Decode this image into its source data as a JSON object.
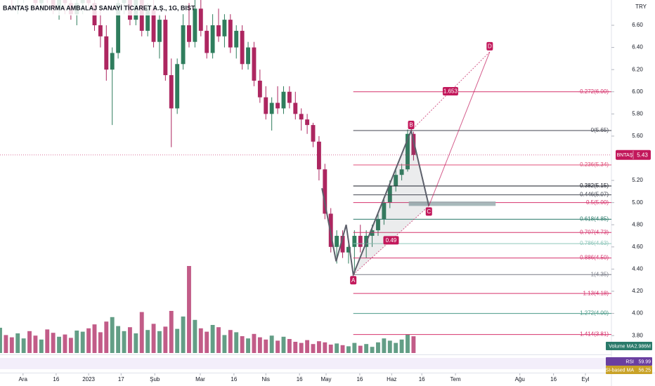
{
  "chart_data": {
    "type": "candlestick",
    "title": "BANTAŞ BANDIRMA AMBALAJ SANAYİ TİCARET A.Ş., 1G, BIST",
    "currency": "TRY",
    "colors": {
      "up": "#2f7d5d",
      "down": "#ad2660"
    },
    "open": [
      6.95,
      7.0,
      6.95,
      6.85,
      6.9,
      6.95,
      6.9,
      6.8,
      6.9,
      6.85,
      6.75,
      6.85,
      6.8,
      6.7,
      6.8,
      6.9,
      6.8,
      6.6,
      6.5,
      6.2,
      6.35,
      6.8,
      6.9,
      6.65,
      6.85,
      6.55,
      6.75,
      6.45,
      6.65,
      6.15,
      5.85,
      6.25,
      6.6,
      6.45,
      6.75,
      6.55,
      6.35,
      6.6,
      6.5,
      6.65,
      6.4,
      6.55,
      6.25,
      6.4,
      6.1,
      5.95,
      5.8,
      5.9,
      5.85,
      6.0,
      5.9,
      5.8,
      5.75,
      5.7,
      5.55,
      5.3,
      4.9,
      4.6,
      4.7,
      4.55,
      4.6,
      4.7,
      4.6,
      4.7,
      4.75,
      4.85,
      5.0,
      5.15,
      5.25,
      5.3,
      5.62
    ],
    "high": [
      7.05,
      7.1,
      7.0,
      6.95,
      7.0,
      7.05,
      7.0,
      6.95,
      7.0,
      6.95,
      6.9,
      6.95,
      6.9,
      6.85,
      6.95,
      7.0,
      6.9,
      6.75,
      6.6,
      6.4,
      6.9,
      7.0,
      7.0,
      6.9,
      6.95,
      6.8,
      6.85,
      6.7,
      6.7,
      6.3,
      6.3,
      6.7,
      6.8,
      6.85,
      6.9,
      6.6,
      6.7,
      6.75,
      6.7,
      6.7,
      6.6,
      6.6,
      6.45,
      6.45,
      6.2,
      6.05,
      5.95,
      6.05,
      6.05,
      6.05,
      6.0,
      5.85,
      5.8,
      5.72,
      5.6,
      5.35,
      4.95,
      4.75,
      4.75,
      4.65,
      4.75,
      4.8,
      4.75,
      4.8,
      4.9,
      5.05,
      5.2,
      5.3,
      5.35,
      5.66,
      5.64
    ],
    "low": [
      6.85,
      6.9,
      6.75,
      6.7,
      6.8,
      6.85,
      6.75,
      6.72,
      6.8,
      6.7,
      6.65,
      6.7,
      6.65,
      6.6,
      6.7,
      6.75,
      6.55,
      6.4,
      6.1,
      5.7,
      6.3,
      6.7,
      6.6,
      6.6,
      6.5,
      6.5,
      6.4,
      6.3,
      6.1,
      5.5,
      5.8,
      6.2,
      6.4,
      6.4,
      6.5,
      6.3,
      6.3,
      6.45,
      6.4,
      6.35,
      6.3,
      6.2,
      6.2,
      6.05,
      5.9,
      5.75,
      5.65,
      5.8,
      5.8,
      5.85,
      5.75,
      5.65,
      5.62,
      5.5,
      5.2,
      4.85,
      4.55,
      4.45,
      4.5,
      4.45,
      4.35,
      4.55,
      4.5,
      4.6,
      4.7,
      4.8,
      4.95,
      5.1,
      5.2,
      5.28,
      5.38
    ],
    "close": [
      7.0,
      6.95,
      6.85,
      6.9,
      6.95,
      6.9,
      6.8,
      6.9,
      6.85,
      6.75,
      6.85,
      6.8,
      6.7,
      6.8,
      6.9,
      6.8,
      6.6,
      6.5,
      6.2,
      6.35,
      6.8,
      6.9,
      6.65,
      6.85,
      6.55,
      6.75,
      6.45,
      6.65,
      6.15,
      5.85,
      6.25,
      6.6,
      6.45,
      6.75,
      6.55,
      6.35,
      6.6,
      6.5,
      6.65,
      6.4,
      6.55,
      6.25,
      6.4,
      6.1,
      5.95,
      5.8,
      5.9,
      5.85,
      6.0,
      5.9,
      5.8,
      5.75,
      5.7,
      5.55,
      5.3,
      4.9,
      4.6,
      4.7,
      4.55,
      4.6,
      4.7,
      4.6,
      4.7,
      4.75,
      4.85,
      5.0,
      5.15,
      5.25,
      5.3,
      5.62,
      5.43
    ],
    "volume": [
      4.5,
      3.2,
      2.8,
      3.5,
      2.6,
      3.9,
      3.1,
      2.4,
      4.2,
      3.6,
      2.9,
      3.3,
      2.7,
      4.0,
      3.8,
      4.4,
      5.1,
      3.7,
      5.6,
      6.4,
      4.8,
      3.9,
      4.6,
      3.5,
      7.3,
      4.1,
      5.2,
      3.9,
      4.7,
      7.5,
      4.3,
      6.5,
      15.5,
      5.9,
      4.4,
      3.8,
      5.0,
      4.6,
      3.2,
      4.1,
      3.7,
      3.0,
      2.6,
      3.4,
      2.8,
      2.4,
      3.1,
      2.2,
      2.9,
      2.5,
      2.0,
      1.8,
      2.3,
      1.6,
      2.1,
      1.9,
      1.5,
      1.7,
      1.4,
      1.2,
      1.8,
      1.3,
      1.6,
      1.1,
      1.9,
      2.6,
      2.2,
      1.8,
      2.4,
      3.3,
      2.986
    ],
    "xlim": [
      0,
      103.5
    ],
    "ylim": [
      3.63,
      6.828
    ],
    "yticks": [
      {
        "value": 6.6,
        "label": "6.60"
      },
      {
        "value": 6.4,
        "label": "6.40"
      },
      {
        "value": 6.2,
        "label": "6.20"
      },
      {
        "value": 6.0,
        "label": "6.00"
      },
      {
        "value": 5.8,
        "label": "5.80"
      },
      {
        "value": 5.6,
        "label": "5.60"
      },
      {
        "value": 5.2,
        "label": "5.20"
      },
      {
        "value": 5.0,
        "label": "5.00"
      },
      {
        "value": 4.8,
        "label": "4.80"
      },
      {
        "value": 4.6,
        "label": "4.60"
      },
      {
        "value": 4.4,
        "label": "4.40"
      },
      {
        "value": 4.2,
        "label": "4.20"
      },
      {
        "value": 4.0,
        "label": "4.00"
      },
      {
        "value": 3.8,
        "label": "3.80"
      }
    ],
    "xticks": [
      {
        "value": 3.9,
        "label": "Ara"
      },
      {
        "value": 9.5,
        "label": "16"
      },
      {
        "value": 15,
        "label": "2023"
      },
      {
        "value": 20.5,
        "label": "17"
      },
      {
        "value": 26.2,
        "label": "Şub"
      },
      {
        "value": 33.9,
        "label": "Mar"
      },
      {
        "value": 39.6,
        "label": "16"
      },
      {
        "value": 45,
        "label": "Nis"
      },
      {
        "value": 50.7,
        "label": "16"
      },
      {
        "value": 55.2,
        "label": "May"
      },
      {
        "value": 60.9,
        "label": "16"
      },
      {
        "value": 66.3,
        "label": "Haz"
      },
      {
        "value": 71.4,
        "label": "16"
      },
      {
        "value": 77.1,
        "label": "Tem"
      },
      {
        "value": 88,
        "label": "Ağu"
      },
      {
        "value": 93.7,
        "label": "16"
      },
      {
        "value": 99.1,
        "label": "Eyl"
      }
    ],
    "last_price": {
      "symbol": "BNTAŞ",
      "value": 5.43,
      "color": "#c2185b"
    },
    "fib_levels": [
      {
        "label": "-0.272(6.00)",
        "value": 6.0,
        "color": "#d6336c"
      },
      {
        "label": "0(5.65)",
        "value": 5.65,
        "color": "#434651"
      },
      {
        "label": "0.236(5.34)",
        "value": 5.34,
        "color": "#e0507a"
      },
      {
        "label": "0.382(5.15)",
        "value": 5.15,
        "color": "#131722"
      },
      {
        "label": "0.446(5.07)",
        "value": 5.07,
        "color": "#434651"
      },
      {
        "label": "0.5(5.00)",
        "value": 5.0,
        "color": "#d6336c"
      },
      {
        "label": "0.618(4.85)",
        "value": 4.85,
        "color": "#2a7a6a"
      },
      {
        "label": "0.707(4.73)",
        "value": 4.73,
        "color": "#d6336c"
      },
      {
        "label": "0.786(4.63)",
        "value": 4.63,
        "color": "#8fc7bb"
      },
      {
        "label": "0.886(4.50)",
        "value": 4.5,
        "color": "#d6336c"
      },
      {
        "label": "1(4.35)",
        "value": 4.35,
        "color": "#787b86"
      },
      {
        "label": "1.13(4.18)",
        "value": 4.18,
        "color": "#d6336c"
      },
      {
        "label": "1.272(4.00)",
        "value": 4.0,
        "color": "#4a9a88"
      },
      {
        "label": "1.414(3.81)",
        "value": 3.81,
        "color": "#d6336c"
      }
    ],
    "pattern": {
      "color": "#5d606b",
      "marker_color": "#c2185b",
      "points": [
        {
          "x": 54.5,
          "y": 5.13
        },
        {
          "x": 56.9,
          "y": 4.47
        },
        {
          "x": 58.6,
          "y": 4.8
        },
        {
          "x": 59.8,
          "y": 4.35,
          "label": "A"
        },
        {
          "x": 69.6,
          "y": 5.65,
          "label": "B"
        },
        {
          "x": 72.6,
          "y": 4.97,
          "label": "C"
        },
        {
          "x": 82.9,
          "y": 6.36,
          "label": "D"
        }
      ],
      "ratios": [
        {
          "value": 0.49
        },
        {
          "value": 1.653
        }
      ],
      "zone": {
        "x": [
          69.2,
          83.9
        ],
        "y": [
          4.97,
          5.01
        ]
      }
    },
    "indicators": [
      {
        "name": "Volume MA",
        "value_label": "2.986M",
        "color": "#2a7a6a"
      },
      {
        "name": "RSI",
        "value": 59.99,
        "color": "#6a3fa0"
      },
      {
        "name": "RSI-based MA",
        "value": 56.25,
        "color": "#c9a227"
      }
    ]
  }
}
